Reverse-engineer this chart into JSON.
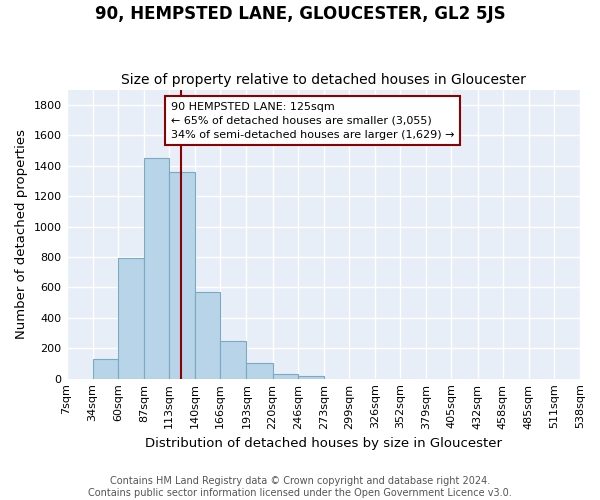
{
  "title": "90, HEMPSTED LANE, GLOUCESTER, GL2 5JS",
  "subtitle": "Size of property relative to detached houses in Gloucester",
  "xlabel": "Distribution of detached houses by size in Gloucester",
  "ylabel": "Number of detached properties",
  "bin_edges": [
    7,
    34,
    60,
    87,
    113,
    140,
    166,
    193,
    220,
    246,
    273,
    299,
    326,
    352,
    379,
    405,
    432,
    458,
    485,
    511,
    538
  ],
  "bin_labels": [
    "7sqm",
    "34sqm",
    "60sqm",
    "87sqm",
    "113sqm",
    "140sqm",
    "166sqm",
    "193sqm",
    "220sqm",
    "246sqm",
    "273sqm",
    "299sqm",
    "326sqm",
    "352sqm",
    "379sqm",
    "405sqm",
    "432sqm",
    "458sqm",
    "485sqm",
    "511sqm",
    "538sqm"
  ],
  "bar_values": [
    0,
    130,
    790,
    1450,
    1360,
    570,
    250,
    105,
    30,
    20,
    0,
    0,
    0,
    0,
    0,
    0,
    0,
    0,
    0,
    0
  ],
  "bar_color": "#b8d4e8",
  "bar_edge_color": "#7aaabf",
  "property_size": 125,
  "red_line_color": "#8b0000",
  "ylim": [
    0,
    1900
  ],
  "yticks": [
    0,
    200,
    400,
    600,
    800,
    1000,
    1200,
    1400,
    1600,
    1800
  ],
  "annotation_box_text": "90 HEMPSTED LANE: 125sqm\n← 65% of detached houses are smaller (3,055)\n34% of semi-detached houses are larger (1,629) →",
  "annotation_box_color": "#ffffff",
  "annotation_box_edge_color": "#8b0000",
  "footer_line1": "Contains HM Land Registry data © Crown copyright and database right 2024.",
  "footer_line2": "Contains public sector information licensed under the Open Government Licence v3.0.",
  "background_color": "#ffffff",
  "plot_background_color": "#e8eef8",
  "grid_color": "#ffffff",
  "title_fontsize": 12,
  "subtitle_fontsize": 10,
  "axis_label_fontsize": 9.5,
  "tick_fontsize": 8,
  "footer_fontsize": 7
}
